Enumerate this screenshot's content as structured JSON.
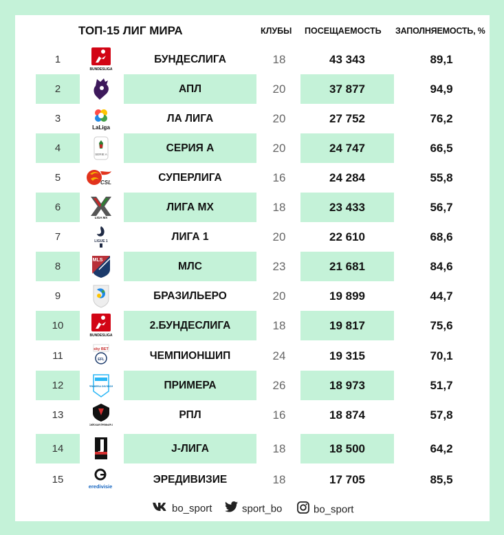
{
  "header": {
    "title": "ТОП-15 ЛИГ МИРА",
    "col_clubs": "КЛУБЫ",
    "col_attendance": "ПОСЕЩАЕМОСТЬ",
    "col_fill": "ЗАПОЛНЯЕМОСТЬ, %"
  },
  "rows": [
    {
      "rank": "1",
      "name": "БУНДЕСЛИГА",
      "clubs": "18",
      "attendance": "43 343",
      "fill": "89,1",
      "logo": "bundesliga-logo"
    },
    {
      "rank": "2",
      "name": "АПЛ",
      "clubs": "20",
      "attendance": "37 877",
      "fill": "94,9",
      "logo": "premier-league-logo"
    },
    {
      "rank": "3",
      "name": "ЛА ЛИГА",
      "clubs": "20",
      "attendance": "27 752",
      "fill": "76,2",
      "logo": "laliga-logo"
    },
    {
      "rank": "4",
      "name": "СЕРИЯ А",
      "clubs": "20",
      "attendance": "24 747",
      "fill": "66,5",
      "logo": "serie-a-logo"
    },
    {
      "rank": "5",
      "name": "СУПЕРЛИГА",
      "clubs": "16",
      "attendance": "24 284",
      "fill": "55,8",
      "logo": "csl-logo"
    },
    {
      "rank": "6",
      "name": "ЛИГА МХ",
      "clubs": "18",
      "attendance": "23 433",
      "fill": "56,7",
      "logo": "liga-mx-logo"
    },
    {
      "rank": "7",
      "name": "ЛИГА 1",
      "clubs": "20",
      "attendance": "22 610",
      "fill": "68,6",
      "logo": "ligue-1-logo"
    },
    {
      "rank": "8",
      "name": "МЛС",
      "clubs": "23",
      "attendance": "21 681",
      "fill": "84,6",
      "logo": "mls-logo"
    },
    {
      "rank": "9",
      "name": "БРАЗИЛЬЕРО",
      "clubs": "20",
      "attendance": "19 899",
      "fill": "44,7",
      "logo": "brasileirao-logo"
    },
    {
      "rank": "10",
      "name": "2.БУНДЕСЛИГА",
      "clubs": "18",
      "attendance": "19 817",
      "fill": "75,6",
      "logo": "bundesliga-2-logo"
    },
    {
      "rank": "11",
      "name": "ЧЕМПИОНШИП",
      "clubs": "24",
      "attendance": "19 315",
      "fill": "70,1",
      "logo": "efl-championship-logo"
    },
    {
      "rank": "12",
      "name": "ПРИМЕРА",
      "clubs": "26",
      "attendance": "18 973",
      "fill": "51,7",
      "logo": "primera-division-logo"
    },
    {
      "rank": "13",
      "name": "РПЛ",
      "clubs": "16",
      "attendance": "18 874",
      "fill": "57,8",
      "logo": "rpl-logo"
    },
    {
      "rank": "14",
      "name": "J-ЛИГА",
      "clubs": "18",
      "attendance": "18 500",
      "fill": "64,2",
      "logo": "j-league-logo"
    },
    {
      "rank": "15",
      "name": "ЭРЕДИВИЗИЕ",
      "clubs": "18",
      "attendance": "17 705",
      "fill": "85,5",
      "logo": "eredivisie-logo"
    }
  ],
  "logo_text": {
    "bundesliga": "BUNDESLIGA",
    "laliga": "LaLiga",
    "serie_a": "SERIE A",
    "csl": "CSL",
    "liga_mx": "LIGA MX",
    "ligue_1": "LIGUE 1",
    "mls": "MLS",
    "sky_bet": "sky BET",
    "efl": "EFL",
    "primera": "PRIMERA DIVISION",
    "rpl": "РОССИЙСКАЯ ПРЕМЬЕР-ЛИГА",
    "eredivisie": "eredivisie"
  },
  "footer": {
    "vk": "bo_sport",
    "twitter": "sport_bo",
    "instagram": "bo_sport"
  },
  "colors": {
    "background": "#c4f2d8",
    "card": "#ffffff",
    "stripe": "#c4f2d8"
  }
}
